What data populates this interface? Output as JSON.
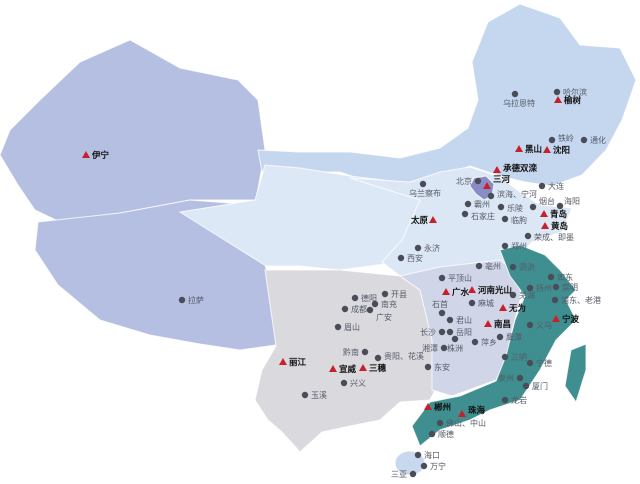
{
  "colors": {
    "west": "#b5bfe1",
    "northeast": "#c5d7ef",
    "north": "#dce7f5",
    "northwest": "#dde8f6",
    "southwest": "#d9d9de",
    "central": "#d0d5e8",
    "southeast": "#3f8f90",
    "beijing": "#8a8cc6",
    "hainan": "#c8d8ee",
    "triangle": "#c8202a",
    "dot": "#4a4d57"
  },
  "markers": [
    {
      "name": "伊宁",
      "type": "triangle"
    },
    {
      "name": "榆树",
      "type": "triangle"
    },
    {
      "name": "黑山",
      "type": "triangle"
    },
    {
      "name": "沈阳",
      "type": "triangle"
    },
    {
      "name": "承德双滦",
      "type": "triangle"
    },
    {
      "name": "三河",
      "type": "triangle"
    },
    {
      "name": "太原",
      "type": "triangle"
    },
    {
      "name": "青岛",
      "type": "triangle"
    },
    {
      "name": "黄岛",
      "type": "triangle"
    },
    {
      "name": "广水",
      "type": "triangle"
    },
    {
      "name": "河南光山",
      "type": "triangle"
    },
    {
      "name": "无为",
      "type": "triangle"
    },
    {
      "name": "南昌",
      "type": "triangle"
    },
    {
      "name": "宁波",
      "type": "triangle"
    },
    {
      "name": "丽江",
      "type": "triangle"
    },
    {
      "name": "宣威",
      "type": "triangle"
    },
    {
      "name": "三穗",
      "type": "triangle"
    },
    {
      "name": "郴州",
      "type": "triangle"
    },
    {
      "name": "珠海",
      "type": "triangle"
    },
    {
      "name": "乌拉恩特",
      "type": "dot"
    },
    {
      "name": "哈尔滨",
      "type": "dot"
    },
    {
      "name": "铁岭",
      "type": "dot"
    },
    {
      "name": "通化",
      "type": "dot"
    },
    {
      "name": "乌兰察布",
      "type": "dot"
    },
    {
      "name": "北京",
      "type": "dot"
    },
    {
      "name": "滨海、宁河",
      "type": "dot"
    },
    {
      "name": "大连",
      "type": "dot"
    },
    {
      "name": "霸州",
      "type": "dot"
    },
    {
      "name": "石家庄",
      "type": "dot"
    },
    {
      "name": "乐陵",
      "type": "dot"
    },
    {
      "name": "临朐",
      "type": "dot"
    },
    {
      "name": "烟台",
      "type": "dot"
    },
    {
      "name": "海阳",
      "type": "dot"
    },
    {
      "name": "荣成、即墨",
      "type": "dot"
    },
    {
      "name": "西安",
      "type": "dot"
    },
    {
      "name": "永济",
      "type": "dot"
    },
    {
      "name": "郑州",
      "type": "dot"
    },
    {
      "name": "亳州",
      "type": "dot"
    },
    {
      "name": "泗洪",
      "type": "dot"
    },
    {
      "name": "平顶山",
      "type": "dot"
    },
    {
      "name": "如东",
      "type": "dot"
    },
    {
      "name": "扬州",
      "type": "dot"
    },
    {
      "name": "崇明",
      "type": "dot"
    },
    {
      "name": "芜湖",
      "type": "dot"
    },
    {
      "name": "浦东、老港",
      "type": "dot"
    },
    {
      "name": "麻城",
      "type": "dot"
    },
    {
      "name": "开县",
      "type": "dot"
    },
    {
      "name": "德阳",
      "type": "dot"
    },
    {
      "name": "南充",
      "type": "dot"
    },
    {
      "name": "成都",
      "type": "dot"
    },
    {
      "name": "广安",
      "type": "dot"
    },
    {
      "name": "眉山",
      "type": "dot"
    },
    {
      "name": "石首",
      "type": "dot"
    },
    {
      "name": "君山",
      "type": "dot"
    },
    {
      "name": "长沙",
      "type": "dot"
    },
    {
      "name": "岳阳",
      "type": "dot"
    },
    {
      "name": "湘潭",
      "type": "dot"
    },
    {
      "name": "株洲",
      "type": "dot"
    },
    {
      "name": "萍乡",
      "type": "dot"
    },
    {
      "name": "鹰潭",
      "type": "dot"
    },
    {
      "name": "义乌",
      "type": "dot"
    },
    {
      "name": "黔南",
      "type": "dot"
    },
    {
      "name": "贵阳、花溪",
      "type": "dot"
    },
    {
      "name": "兴义",
      "type": "dot"
    },
    {
      "name": "东安",
      "type": "dot"
    },
    {
      "name": "玉溪",
      "type": "dot"
    },
    {
      "name": "三明",
      "type": "dot"
    },
    {
      "name": "宁德",
      "type": "dot"
    },
    {
      "name": "泉州",
      "type": "dot"
    },
    {
      "name": "厦门",
      "type": "dot"
    },
    {
      "name": "龙岩",
      "type": "dot"
    },
    {
      "name": "佛山、中山",
      "type": "dot"
    },
    {
      "name": "顺德",
      "type": "dot"
    },
    {
      "name": "海口",
      "type": "dot"
    },
    {
      "name": "万宁",
      "type": "dot"
    },
    {
      "name": "三亚",
      "type": "dot"
    },
    {
      "name": "拉萨",
      "type": "dot"
    }
  ]
}
